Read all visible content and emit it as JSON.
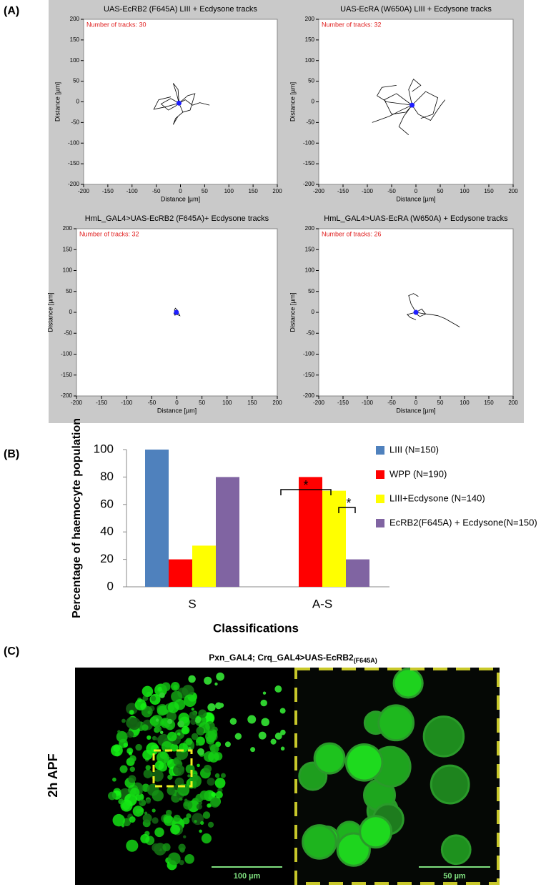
{
  "panel_labels": [
    "(A)",
    "(B)",
    "(C)"
  ],
  "chart_data": [
    {
      "type": "track",
      "title": "UAS-EcRB2 (F645A) LIII + Ecdysone tracks",
      "annotation": "Number of tracks: 30",
      "xlabel": "Distance [µm]",
      "ylabel": "Distance [µm]",
      "color": "#000000",
      "xlim": [
        -200,
        200
      ],
      "ylim": [
        -200,
        200
      ],
      "xticks": [
        -200,
        -150,
        -100,
        -50,
        0,
        50,
        100,
        150,
        200
      ],
      "yticks": [
        -200,
        -150,
        -100,
        -50,
        0,
        50,
        100,
        150,
        200
      ],
      "tracks": [
        {
          "x": [
            -3,
            -20,
            -40,
            -25,
            -10,
            -3
          ],
          "y": [
            -3,
            8,
            -5,
            -20,
            -10,
            -3
          ]
        },
        {
          "x": [
            -3,
            10,
            25,
            40,
            60
          ],
          "y": [
            -3,
            5,
            -8,
            -2,
            -8
          ]
        },
        {
          "x": [
            -3,
            -8,
            -15,
            -5,
            -3
          ],
          "y": [
            -3,
            20,
            45,
            30,
            -3
          ]
        },
        {
          "x": [
            -3,
            5,
            -10,
            -15,
            -5
          ],
          "y": [
            -3,
            -25,
            -40,
            -55,
            -35
          ]
        },
        {
          "x": [
            -3,
            15,
            30,
            20,
            5
          ],
          "y": [
            -3,
            15,
            20,
            -20,
            -25
          ]
        },
        {
          "x": [
            -3,
            -30,
            -55,
            -45,
            -20
          ],
          "y": [
            -3,
            -12,
            -18,
            5,
            12
          ]
        }
      ],
      "center": {
        "x": -3,
        "y": -3,
        "color": "#1f1fff"
      }
    },
    {
      "type": "track",
      "title": "UAS-EcRA (W650A) LIII + Ecdysone tracks",
      "annotation": "Number of tracks: 32",
      "xlabel": "Distance [µm]",
      "ylabel": "Distance [µm]",
      "color": "#000000",
      "xlim": [
        -200,
        200
      ],
      "ylim": [
        -200,
        200
      ],
      "xticks": [
        -200,
        -150,
        -100,
        -50,
        0,
        50,
        100,
        150,
        200
      ],
      "yticks": [
        -200,
        -150,
        -100,
        -50,
        0,
        50,
        100,
        150,
        200
      ],
      "tracks": [
        {
          "x": [
            -8,
            -40,
            -65,
            -50,
            -20,
            -8
          ],
          "y": [
            -8,
            20,
            5,
            -30,
            -25,
            -8
          ]
        },
        {
          "x": [
            -8,
            20,
            45,
            35,
            10
          ],
          "y": [
            -8,
            25,
            10,
            -30,
            -40
          ]
        },
        {
          "x": [
            -8,
            -30,
            -55,
            -90
          ],
          "y": [
            -8,
            -20,
            -35,
            -50
          ]
        },
        {
          "x": [
            -8,
            -15,
            -5,
            10,
            -8
          ],
          "y": [
            -8,
            30,
            55,
            40,
            25
          ]
        },
        {
          "x": [
            -8,
            5,
            30,
            50,
            60
          ],
          "y": [
            -8,
            -30,
            -45,
            -10,
            5
          ]
        },
        {
          "x": [
            -8,
            -25,
            -35,
            -20,
            -15
          ],
          "y": [
            -8,
            -35,
            -60,
            -75,
            -80
          ]
        },
        {
          "x": [
            -8,
            -60,
            -80,
            -70,
            -40
          ],
          "y": [
            -8,
            0,
            15,
            35,
            40
          ]
        }
      ],
      "center": {
        "x": -8,
        "y": -8,
        "color": "#1f1fff"
      }
    },
    {
      "type": "track",
      "title": "HmL_GAL4>UAS-EcRB2 (F645A)+ Ecdysone tracks",
      "annotation": "Number of tracks: 32",
      "xlabel": "Distance [µm]",
      "ylabel": "Distance [µm]",
      "color": "#000000",
      "xlim": [
        -200,
        200
      ],
      "ylim": [
        -200,
        200
      ],
      "xticks": [
        -200,
        -150,
        -100,
        -50,
        0,
        50,
        100,
        150,
        200
      ],
      "yticks": [
        -200,
        -150,
        -100,
        -50,
        0,
        50,
        100,
        150,
        200
      ],
      "tracks": [
        {
          "x": [
            -1,
            -5,
            -3,
            2,
            -1
          ],
          "y": [
            0,
            5,
            10,
            4,
            0
          ]
        },
        {
          "x": [
            -1,
            4,
            6,
            2,
            -2
          ],
          "y": [
            0,
            -3,
            -8,
            -6,
            -4
          ]
        },
        {
          "x": [
            -1,
            -6,
            -4,
            0
          ],
          "y": [
            0,
            -2,
            -7,
            -5
          ]
        }
      ],
      "center": {
        "x": -1,
        "y": 0,
        "color": "#1f1fff"
      }
    },
    {
      "type": "track",
      "title": "HmL_GAL4>UAS-EcRA (W650A) + Ecdysone tracks",
      "annotation": "Number of tracks: 26",
      "xlabel": "Distance [µm]",
      "ylabel": "Distance [µm]",
      "color": "#000000",
      "xlim": [
        -200,
        200
      ],
      "ylim": [
        -200,
        200
      ],
      "xticks": [
        -200,
        -150,
        -100,
        -50,
        0,
        50,
        100,
        150,
        200
      ],
      "yticks": [
        -200,
        -150,
        -100,
        -50,
        0,
        50,
        100,
        150,
        200
      ],
      "tracks": [
        {
          "x": [
            0,
            15,
            30,
            45,
            60,
            75,
            90
          ],
          "y": [
            0,
            -3,
            -5,
            -8,
            -15,
            -25,
            -35
          ]
        },
        {
          "x": [
            0,
            -10,
            -15,
            -5,
            5
          ],
          "y": [
            0,
            20,
            40,
            45,
            38
          ]
        },
        {
          "x": [
            0,
            -18,
            -12,
            0
          ],
          "y": [
            0,
            -5,
            -12,
            -18
          ]
        },
        {
          "x": [
            0,
            12,
            20,
            8,
            0
          ],
          "y": [
            0,
            8,
            -4,
            -10,
            -3
          ]
        }
      ],
      "center": {
        "x": 0,
        "y": 0,
        "color": "#1f1fff"
      }
    },
    {
      "type": "bar",
      "ylabel": "Percentage of haemocyte population",
      "xlabel": "Classifications",
      "categories": [
        "S",
        "A-S"
      ],
      "ylim": [
        0,
        100
      ],
      "yticks": [
        0,
        20,
        40,
        60,
        80,
        100
      ],
      "series": [
        {
          "name": "LIII (N=150)",
          "color": "#4f81bd",
          "values": [
            100,
            0
          ]
        },
        {
          "name": "WPP (N=190)",
          "color": "#ff0000",
          "values": [
            20,
            80
          ]
        },
        {
          "name": "LIII+Ecdysone (N=140)",
          "color": "#ffff00",
          "values": [
            30,
            70
          ]
        },
        {
          "name": "EcRB2(F645A) + Ecdysone(N=150)",
          "color": "#8064a2",
          "values": [
            80,
            20
          ]
        }
      ],
      "annotations": [
        "*",
        "*"
      ]
    }
  ],
  "panel_c": {
    "title": "Pxn_GAL4; Crq_GAL4>UAS-EcRB2",
    "title_subscript": "(F645A)",
    "row_label": "2h APF",
    "scale_bars": [
      "100 µm",
      "50 µm"
    ]
  }
}
